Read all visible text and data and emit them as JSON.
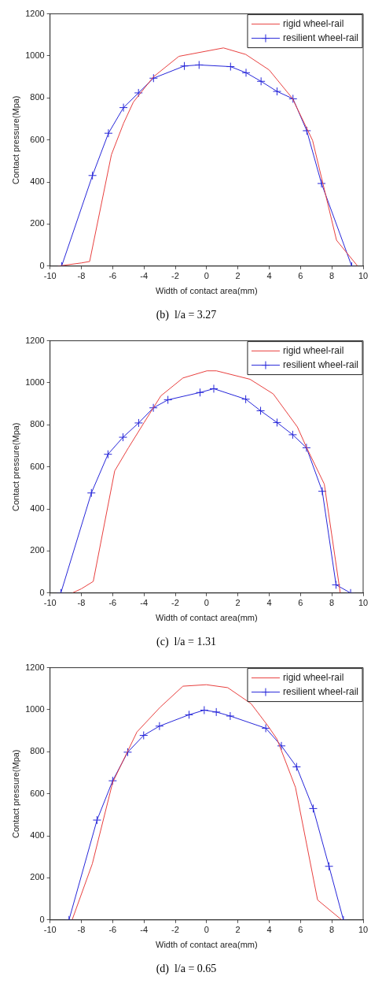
{
  "chart_data": [
    {
      "type": "line",
      "title": "(b)  l/a = 3.27",
      "xlabel": "Width of contact area(mm)",
      "ylabel": "Contact pressure(Mpa)",
      "xlim": [
        -10,
        10
      ],
      "xticks": [
        -10,
        -8,
        -6,
        -4,
        -2,
        0,
        2,
        4,
        6,
        8,
        10
      ],
      "ylim": [
        0,
        1200
      ],
      "yticks": [
        0,
        200,
        400,
        600,
        800,
        1000,
        1200
      ],
      "legend": "top right",
      "series": [
        {
          "name": "rigid wheel-rail",
          "color": "#e8403f",
          "marker": "none",
          "x": [
            -9.5,
            -8,
            -7.47,
            -6.08,
            -5.3,
            -4.68,
            -3.4,
            -1.77,
            1.08,
            2.5,
            4.0,
            5.48,
            6.77,
            8.3,
            9.65
          ],
          "values": [
            0,
            15,
            22,
            530,
            680,
            780,
            900,
            998,
            1038,
            1007,
            933,
            798,
            598,
            123,
            0
          ]
        },
        {
          "name": "resilient wheel-rail",
          "color": "#2626d9",
          "marker": "cross",
          "x": [
            -9.26,
            -7.29,
            -6.27,
            -5.31,
            -4.35,
            -3.39,
            -1.42,
            -0.48,
            1.53,
            2.52,
            3.48,
            4.5,
            5.52,
            6.4,
            7.34,
            9.27
          ],
          "values": [
            0,
            431,
            632,
            754,
            824,
            894,
            952,
            957,
            949,
            920,
            879,
            831,
            796,
            644,
            393,
            0
          ]
        }
      ]
    },
    {
      "type": "line",
      "title": "(c)  l/a = 1.31",
      "xlabel": "Width of contact area(mm)",
      "ylabel": "Contact pressure(Mpa)",
      "xlim": [
        -10,
        10
      ],
      "xticks": [
        -10,
        -8,
        -6,
        -4,
        -2,
        0,
        2,
        4,
        6,
        8,
        10
      ],
      "ylim": [
        0,
        1200
      ],
      "yticks": [
        0,
        200,
        400,
        600,
        800,
        1000,
        1200
      ],
      "legend": "top right",
      "series": [
        {
          "name": "rigid wheel-rail",
          "color": "#e8403f",
          "marker": "none",
          "x": [
            -8.59,
            -8,
            -7.24,
            -5.87,
            -5,
            -4,
            -2.92,
            -1.51,
            0.02,
            0.63,
            2.77,
            4.26,
            5.8,
            6.4,
            7.52,
            8.54
          ],
          "values": [
            0,
            20,
            55,
            581,
            690,
            810,
            938,
            1023,
            1057,
            1057,
            1017,
            947,
            790,
            690,
            518,
            0
          ]
        },
        {
          "name": "resilient wheel-rail",
          "color": "#2626d9",
          "marker": "cross",
          "x": [
            -9.31,
            -7.36,
            -6.3,
            -5.34,
            -4.34,
            -3.4,
            -2.47,
            -0.42,
            0.46,
            2.5,
            3.45,
            4.5,
            5.5,
            6.38,
            7.39,
            8.27,
            9.2
          ],
          "values": [
            0,
            476,
            660,
            741,
            809,
            881,
            919,
            954,
            972,
            922,
            867,
            811,
            753,
            691,
            484,
            39,
            0
          ]
        }
      ]
    },
    {
      "type": "line",
      "title": "(d)  l/a = 0.65",
      "xlabel": "Width of contact area(mm)",
      "ylabel": "Contact pressure(Mpa)",
      "xlim": [
        -10,
        10
      ],
      "xticks": [
        -10,
        -8,
        -6,
        -4,
        -2,
        0,
        2,
        4,
        6,
        8,
        10
      ],
      "ylim": [
        0,
        1200
      ],
      "yticks": [
        0,
        200,
        400,
        600,
        800,
        1000,
        1200
      ],
      "legend": "top right",
      "series": [
        {
          "name": "rigid wheel-rail",
          "color": "#e8403f",
          "marker": "none",
          "x": [
            -8.59,
            -7.3,
            -6.0,
            -4.45,
            -2.98,
            -1.51,
            -0.02,
            1.35,
            2.84,
            3.9,
            4.5,
            5.68,
            7.09,
            8.63
          ],
          "values": [
            0,
            267,
            654,
            894,
            1011,
            1112,
            1119,
            1105,
            1029,
            925,
            860,
            630,
            95,
            0
          ]
        },
        {
          "name": "resilient wheel-rail",
          "color": "#2626d9",
          "marker": "cross",
          "x": [
            -8.79,
            -7.0,
            -6.0,
            -5.04,
            -4.02,
            -3.01,
            -1.12,
            -0.15,
            0.62,
            1.51,
            3.78,
            4.78,
            5.75,
            6.81,
            7.82,
            8.74
          ],
          "values": [
            0,
            475,
            662,
            798,
            878,
            922,
            976,
            998,
            989,
            970,
            912,
            828,
            728,
            530,
            255,
            0
          ]
        }
      ]
    }
  ]
}
